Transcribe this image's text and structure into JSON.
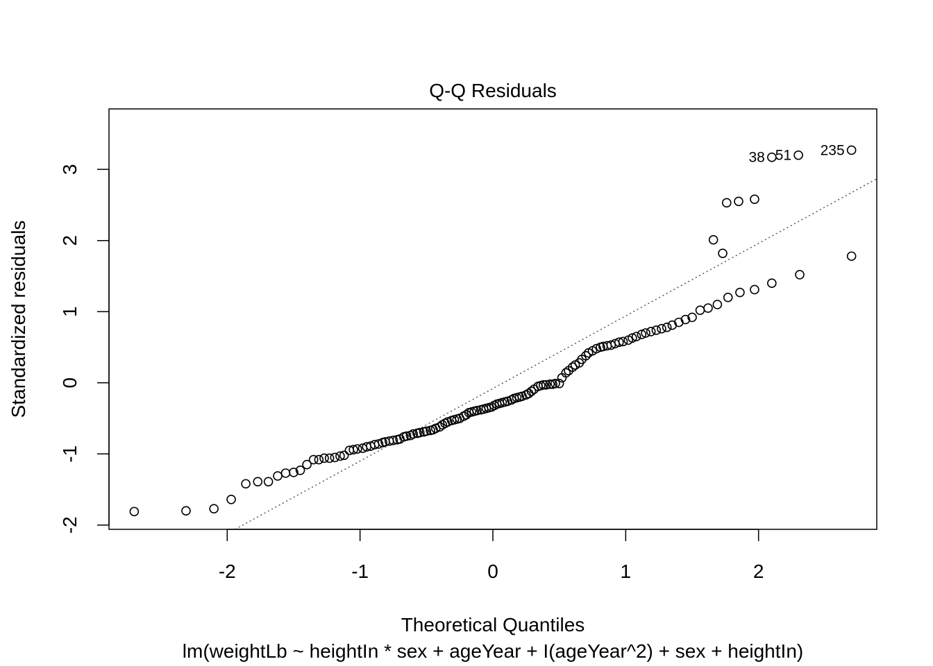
{
  "chart_data": {
    "type": "scatter",
    "title": "Q-Q Residuals",
    "xlabel": "Theoretical Quantiles",
    "ylabel": "Standardized residuals",
    "subtitle": "lm(weightLb ~ heightIn * sex + ageYear + I(ageYear^2) + sex + heightIn)",
    "xlim": [
      -2.89,
      2.89
    ],
    "ylim": [
      -2.06,
      3.85
    ],
    "x_ticks": [
      "-2",
      "-1",
      "0",
      "1",
      "2"
    ],
    "x_tick_values": [
      -2,
      -1,
      0,
      1,
      2
    ],
    "y_ticks": [
      "-2",
      "-1",
      "0",
      "1",
      "2",
      "3"
    ],
    "y_tick_values": [
      -2,
      -1,
      0,
      1,
      2,
      3
    ],
    "grid": false,
    "reference_line": {
      "style": "dotted",
      "slope": 1.02,
      "intercept": -0.08
    },
    "point_labels": [
      {
        "label": "38",
        "x": 2.1,
        "y": 3.17
      },
      {
        "label": "51",
        "x": 2.3,
        "y": 3.2
      },
      {
        "label": "235",
        "x": 2.7,
        "y": 3.27
      }
    ],
    "points": [
      [
        -2.7,
        -1.81
      ],
      [
        -2.31,
        -1.8
      ],
      [
        -2.1,
        -1.77
      ],
      [
        -1.97,
        -1.64
      ],
      [
        -1.86,
        -1.42
      ],
      [
        -1.77,
        -1.39
      ],
      [
        -1.69,
        -1.39
      ],
      [
        -1.62,
        -1.31
      ],
      [
        -1.56,
        -1.27
      ],
      [
        -1.5,
        -1.26
      ],
      [
        -1.45,
        -1.23
      ],
      [
        -1.4,
        -1.15
      ],
      [
        -1.35,
        -1.08
      ],
      [
        -1.31,
        -1.08
      ],
      [
        -1.27,
        -1.06
      ],
      [
        -1.23,
        -1.06
      ],
      [
        -1.19,
        -1.05
      ],
      [
        -1.15,
        -1.03
      ],
      [
        -1.12,
        -1.02
      ],
      [
        -1.08,
        -0.95
      ],
      [
        -1.05,
        -0.94
      ],
      [
        -1.02,
        -0.93
      ],
      [
        -0.98,
        -0.92
      ],
      [
        -0.95,
        -0.9
      ],
      [
        -0.92,
        -0.89
      ],
      [
        -0.89,
        -0.87
      ],
      [
        -0.86,
        -0.86
      ],
      [
        -0.83,
        -0.84
      ],
      [
        -0.81,
        -0.83
      ],
      [
        -0.78,
        -0.82
      ],
      [
        -0.75,
        -0.81
      ],
      [
        -0.72,
        -0.8
      ],
      [
        -0.7,
        -0.79
      ],
      [
        -0.67,
        -0.76
      ],
      [
        -0.65,
        -0.75
      ],
      [
        -0.62,
        -0.74
      ],
      [
        -0.6,
        -0.72
      ],
      [
        -0.57,
        -0.71
      ],
      [
        -0.55,
        -0.7
      ],
      [
        -0.52,
        -0.69
      ],
      [
        -0.5,
        -0.68
      ],
      [
        -0.47,
        -0.67
      ],
      [
        -0.45,
        -0.66
      ],
      [
        -0.43,
        -0.64
      ],
      [
        -0.4,
        -0.62
      ],
      [
        -0.38,
        -0.59
      ],
      [
        -0.36,
        -0.57
      ],
      [
        -0.34,
        -0.55
      ],
      [
        -0.31,
        -0.53
      ],
      [
        -0.29,
        -0.52
      ],
      [
        -0.27,
        -0.51
      ],
      [
        -0.25,
        -0.5
      ],
      [
        -0.22,
        -0.47
      ],
      [
        -0.2,
        -0.45
      ],
      [
        -0.18,
        -0.42
      ],
      [
        -0.16,
        -0.41
      ],
      [
        -0.14,
        -0.4
      ],
      [
        -0.12,
        -0.39
      ],
      [
        -0.09,
        -0.38
      ],
      [
        -0.07,
        -0.37
      ],
      [
        -0.05,
        -0.36
      ],
      [
        -0.03,
        -0.35
      ],
      [
        -0.01,
        -0.34
      ],
      [
        0.01,
        -0.32
      ],
      [
        0.03,
        -0.3
      ],
      [
        0.05,
        -0.29
      ],
      [
        0.07,
        -0.28
      ],
      [
        0.09,
        -0.27
      ],
      [
        0.11,
        -0.26
      ],
      [
        0.14,
        -0.24
      ],
      [
        0.16,
        -0.22
      ],
      [
        0.18,
        -0.21
      ],
      [
        0.2,
        -0.2
      ],
      [
        0.22,
        -0.19
      ],
      [
        0.25,
        -0.17
      ],
      [
        0.27,
        -0.15
      ],
      [
        0.29,
        -0.12
      ],
      [
        0.31,
        -0.09
      ],
      [
        0.34,
        -0.05
      ],
      [
        0.36,
        -0.04
      ],
      [
        0.38,
        -0.03
      ],
      [
        0.4,
        -0.03
      ],
      [
        0.43,
        -0.02
      ],
      [
        0.45,
        -0.02
      ],
      [
        0.47,
        -0.01
      ],
      [
        0.5,
        -0.01
      ],
      [
        0.52,
        0.07
      ],
      [
        0.55,
        0.14
      ],
      [
        0.57,
        0.17
      ],
      [
        0.6,
        0.22
      ],
      [
        0.62,
        0.25
      ],
      [
        0.65,
        0.28
      ],
      [
        0.67,
        0.33
      ],
      [
        0.7,
        0.38
      ],
      [
        0.72,
        0.42
      ],
      [
        0.75,
        0.45
      ],
      [
        0.78,
        0.48
      ],
      [
        0.81,
        0.5
      ],
      [
        0.83,
        0.51
      ],
      [
        0.86,
        0.52
      ],
      [
        0.89,
        0.53
      ],
      [
        0.92,
        0.55
      ],
      [
        0.95,
        0.57
      ],
      [
        0.98,
        0.58
      ],
      [
        1.02,
        0.6
      ],
      [
        1.05,
        0.63
      ],
      [
        1.08,
        0.65
      ],
      [
        1.12,
        0.68
      ],
      [
        1.15,
        0.7
      ],
      [
        1.19,
        0.72
      ],
      [
        1.23,
        0.74
      ],
      [
        1.27,
        0.76
      ],
      [
        1.31,
        0.78
      ],
      [
        1.35,
        0.81
      ],
      [
        1.4,
        0.85
      ],
      [
        1.45,
        0.89
      ],
      [
        1.5,
        0.92
      ],
      [
        1.56,
        1.02
      ],
      [
        1.62,
        1.05
      ],
      [
        1.69,
        1.1
      ],
      [
        1.77,
        1.2
      ],
      [
        1.86,
        1.27
      ],
      [
        1.97,
        1.31
      ],
      [
        2.1,
        1.4
      ],
      [
        2.31,
        1.52
      ],
      [
        2.7,
        1.78
      ],
      [
        1.73,
        1.82
      ],
      [
        1.66,
        2.01
      ],
      [
        1.76,
        2.53
      ],
      [
        1.85,
        2.55
      ],
      [
        1.97,
        2.58
      ]
    ]
  }
}
